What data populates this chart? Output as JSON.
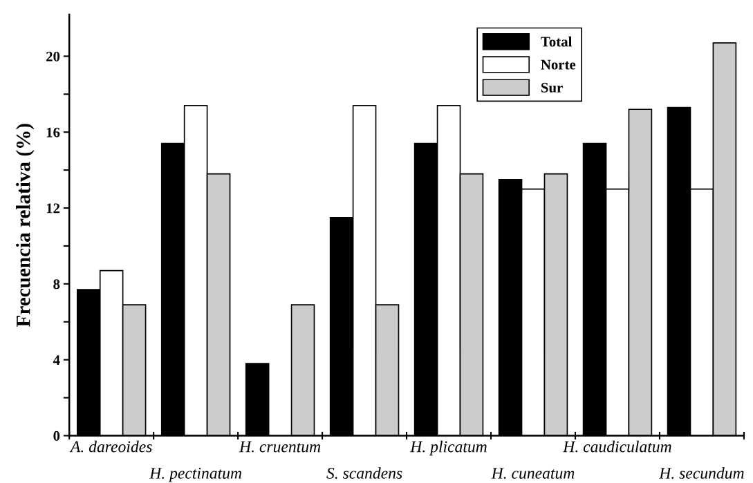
{
  "chart_data": {
    "type": "bar",
    "ylabel": "Frecuencia relativa (%)",
    "categories": [
      "A. dareoides",
      "H. pectinatum",
      "H. cruentum",
      "S. scandens",
      "H. plicatum",
      "H. cuneatum",
      "H. caudiculatum",
      "H. secundum"
    ],
    "series": [
      {
        "name": "Total",
        "color": "#000000",
        "values": [
          7.7,
          15.4,
          3.8,
          11.5,
          15.4,
          13.5,
          15.4,
          17.3
        ]
      },
      {
        "name": "Norte",
        "color": "#ffffff",
        "values": [
          8.7,
          17.4,
          0,
          17.4,
          17.4,
          13.0,
          13.0,
          13.0
        ]
      },
      {
        "name": "Sur",
        "color": "#cccccc",
        "values": [
          6.9,
          13.8,
          6.9,
          6.9,
          13.8,
          13.8,
          17.2,
          20.7
        ]
      }
    ],
    "ylim": [
      0,
      22.2
    ],
    "yticks": [
      0,
      {
        "value": 2,
        "label": null
      },
      4,
      {
        "value": 6,
        "label": null
      },
      8,
      {
        "value": 10,
        "label": null
      },
      12,
      {
        "value": 14,
        "label": null
      },
      16,
      {
        "value": 18,
        "label": null
      },
      20
    ],
    "grid": false,
    "legend": "top right"
  }
}
